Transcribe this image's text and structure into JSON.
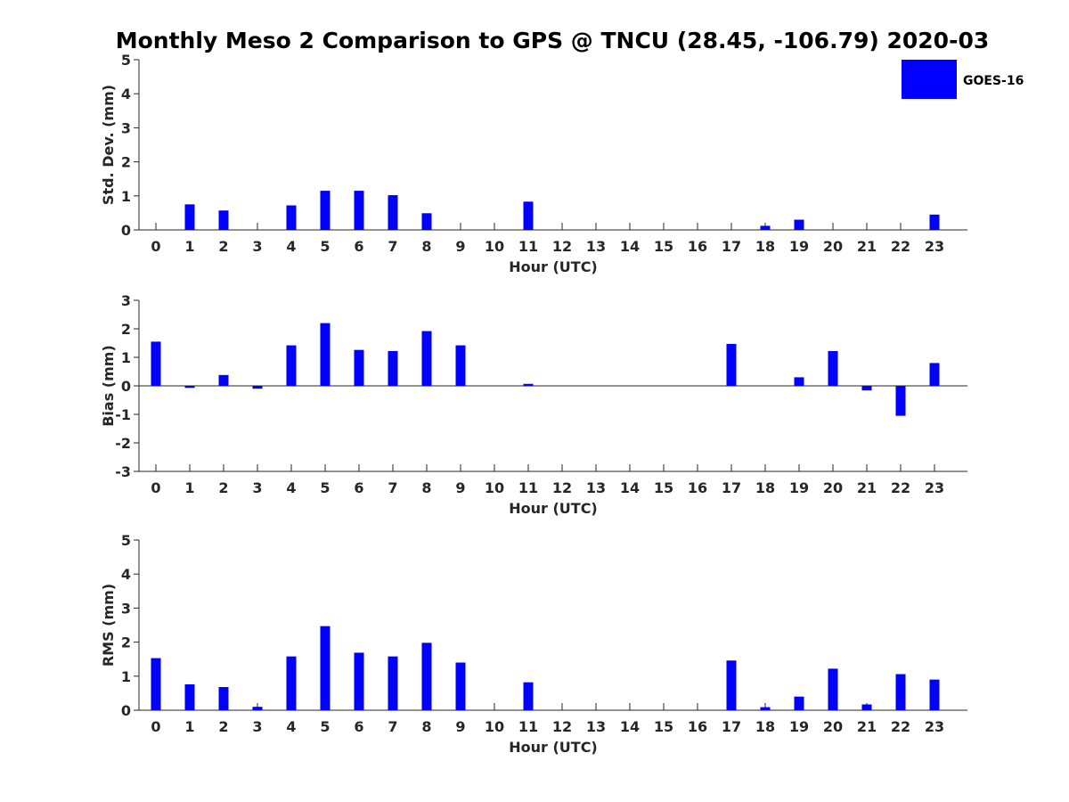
{
  "figure": {
    "title": "Monthly Meso 2 Comparison to GPS @ TNCU (28.45, -106.79) 2020-03",
    "legend": {
      "label": "GOES-16",
      "color": "#0000ff",
      "placement": "top-right"
    }
  },
  "chart_data": [
    {
      "type": "bar",
      "xlabel": "Hour (UTC)",
      "ylabel": "Std. Dev. (mm)",
      "ylim": [
        0,
        5
      ],
      "yticks": [
        0,
        1,
        2,
        3,
        4,
        5
      ],
      "grid": false,
      "categories": [
        "0",
        "1",
        "2",
        "3",
        "4",
        "5",
        "6",
        "7",
        "8",
        "9",
        "10",
        "11",
        "12",
        "13",
        "14",
        "15",
        "16",
        "17",
        "18",
        "19",
        "20",
        "21",
        "22",
        "23"
      ],
      "series": [
        {
          "name": "GOES-16",
          "color": "#0000ff",
          "values": [
            null,
            0.75,
            0.57,
            null,
            0.72,
            1.15,
            1.15,
            1.02,
            0.49,
            null,
            null,
            0.83,
            null,
            null,
            null,
            null,
            null,
            null,
            0.12,
            0.3,
            null,
            null,
            null,
            0.45
          ]
        }
      ]
    },
    {
      "type": "bar",
      "xlabel": "Hour (UTC)",
      "ylabel": "Bias (mm)",
      "ylim": [
        -3,
        3
      ],
      "yticks": [
        -3,
        -2,
        -1,
        0,
        1,
        2,
        3
      ],
      "grid": false,
      "categories": [
        "0",
        "1",
        "2",
        "3",
        "4",
        "5",
        "6",
        "7",
        "8",
        "9",
        "10",
        "11",
        "12",
        "13",
        "14",
        "15",
        "16",
        "17",
        "18",
        "19",
        "20",
        "21",
        "22",
        "23"
      ],
      "series": [
        {
          "name": "GOES-16",
          "color": "#0000ff",
          "values": [
            1.55,
            -0.07,
            0.38,
            -0.1,
            1.42,
            2.2,
            1.26,
            1.22,
            1.92,
            1.42,
            null,
            0.07,
            null,
            null,
            null,
            null,
            null,
            1.47,
            null,
            0.3,
            1.22,
            -0.16,
            -1.05,
            0.8
          ]
        }
      ]
    },
    {
      "type": "bar",
      "xlabel": "Hour (UTC)",
      "ylabel": "RMS (mm)",
      "ylim": [
        0,
        5
      ],
      "yticks": [
        0,
        1,
        2,
        3,
        4,
        5
      ],
      "grid": false,
      "categories": [
        "0",
        "1",
        "2",
        "3",
        "4",
        "5",
        "6",
        "7",
        "8",
        "9",
        "10",
        "11",
        "12",
        "13",
        "14",
        "15",
        "16",
        "17",
        "18",
        "19",
        "20",
        "21",
        "22",
        "23"
      ],
      "series": [
        {
          "name": "GOES-16",
          "color": "#0000ff",
          "values": [
            1.53,
            0.76,
            0.68,
            0.1,
            1.58,
            2.47,
            1.69,
            1.58,
            1.98,
            1.4,
            null,
            0.82,
            null,
            null,
            null,
            null,
            null,
            1.46,
            0.09,
            0.4,
            1.22,
            0.17,
            1.06,
            0.9
          ]
        }
      ]
    }
  ]
}
